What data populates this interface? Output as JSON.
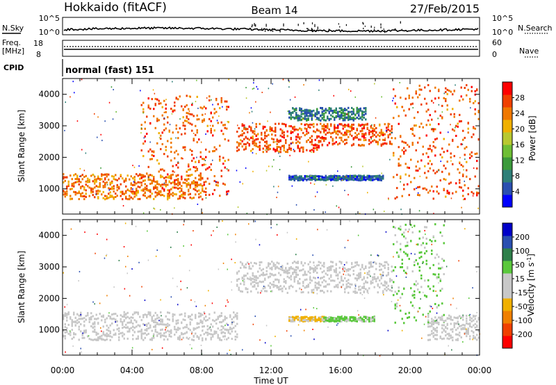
{
  "header": {
    "station": "Hokkaido (fitACF)",
    "beam": "Beam 14",
    "date": "27/Feb/2015"
  },
  "noise_panel": {
    "left_label": "N.Sky",
    "right_label": "N.Search",
    "left_ticks": [
      "10^5",
      "10^0"
    ],
    "right_ticks": [
      "10^5",
      "10^0"
    ]
  },
  "freq_panel": {
    "left_label": "Freq.",
    "left_unit": "[MHz]",
    "left_ticks": [
      "18",
      "8"
    ],
    "right_label": "Nave",
    "right_ticks": [
      "60",
      "0"
    ]
  },
  "cpid_panel": {
    "label": "CPID",
    "mode_text": "normal (fast) 151"
  },
  "colors": {
    "power_scale": [
      "#0000ff",
      "#2a4fb0",
      "#2e7f78",
      "#3b9a3b",
      "#6ebe35",
      "#b8c830",
      "#f0b000",
      "#f07800",
      "#f04000",
      "#ff0000"
    ],
    "velocity_scale": [
      "#ff0000",
      "#f04000",
      "#f08000",
      "#f0b000",
      "#c8c8c8",
      "#c8c8c8",
      "#5ac83c",
      "#2e7f4a",
      "#2a4fb0",
      "#0000c8"
    ]
  },
  "chart_data": [
    {
      "type": "heatmap",
      "title": "",
      "ylabel": "Slant Range [km]",
      "xlabel": "",
      "xlim": [
        "00:00",
        "24:00"
      ],
      "ylim": [
        200,
        4500
      ],
      "y_ticks": [
        "1000",
        "2000",
        "3000",
        "4000"
      ],
      "colorbar": {
        "label": "Power [dB]",
        "range": [
          0,
          32
        ],
        "ticks": [
          "4",
          "8",
          "12",
          "16",
          "20",
          "24",
          "28"
        ]
      },
      "features": [
        {
          "t_start": 0.0,
          "t_end": 8.0,
          "range_low": 700,
          "range_high": 1500,
          "value": 24
        },
        {
          "t_start": 4.5,
          "t_end": 9.5,
          "range_low": 800,
          "range_high": 4000,
          "value": 26
        },
        {
          "t_start": 10.0,
          "t_end": 15.0,
          "range_low": 2200,
          "range_high": 3100,
          "value": 26
        },
        {
          "t_start": 15.0,
          "t_end": 19.0,
          "range_low": 2400,
          "range_high": 3100,
          "value": 26
        },
        {
          "t_start": 13.0,
          "t_end": 18.5,
          "range_low": 1300,
          "range_high": 1450,
          "value": 6
        },
        {
          "t_start": 13.0,
          "t_end": 17.5,
          "range_low": 3200,
          "range_high": 3600,
          "value": 8
        },
        {
          "t_start": 19.0,
          "t_end": 24.0,
          "range_low": 700,
          "range_high": 4400,
          "value": 26
        }
      ]
    },
    {
      "type": "heatmap",
      "title": "",
      "ylabel": "Slant Range [km]",
      "xlabel": "Time UT",
      "xlim": [
        "00:00",
        "24:00"
      ],
      "ylim": [
        200,
        4500
      ],
      "x_ticks": [
        "00:00",
        "04:00",
        "08:00",
        "12:00",
        "16:00",
        "20:00",
        "00:00"
      ],
      "y_ticks": [
        "1000",
        "2000",
        "3000",
        "4000"
      ],
      "colorbar": {
        "label": "Velocity [m s^-1]",
        "range": [
          -250,
          250
        ],
        "ticks": [
          "200",
          "100",
          "50",
          "15",
          "-15",
          "-50",
          "-100",
          "-200"
        ]
      },
      "features": [
        {
          "t_start": 0.0,
          "t_end": 10.0,
          "range_low": 700,
          "range_high": 1600,
          "value": 0
        },
        {
          "t_start": 10.0,
          "t_end": 19.0,
          "range_low": 2200,
          "range_high": 3200,
          "value": 0
        },
        {
          "t_start": 13.0,
          "t_end": 15.0,
          "range_low": 1300,
          "range_high": 1450,
          "value": -60
        },
        {
          "t_start": 15.0,
          "t_end": 18.0,
          "range_low": 1300,
          "range_high": 1450,
          "value": 60
        },
        {
          "t_start": 19.0,
          "t_end": 22.0,
          "range_low": 1200,
          "range_high": 4400,
          "value": 60
        },
        {
          "t_start": 21.0,
          "t_end": 24.0,
          "range_low": 700,
          "range_high": 1500,
          "value": 0
        }
      ]
    }
  ]
}
